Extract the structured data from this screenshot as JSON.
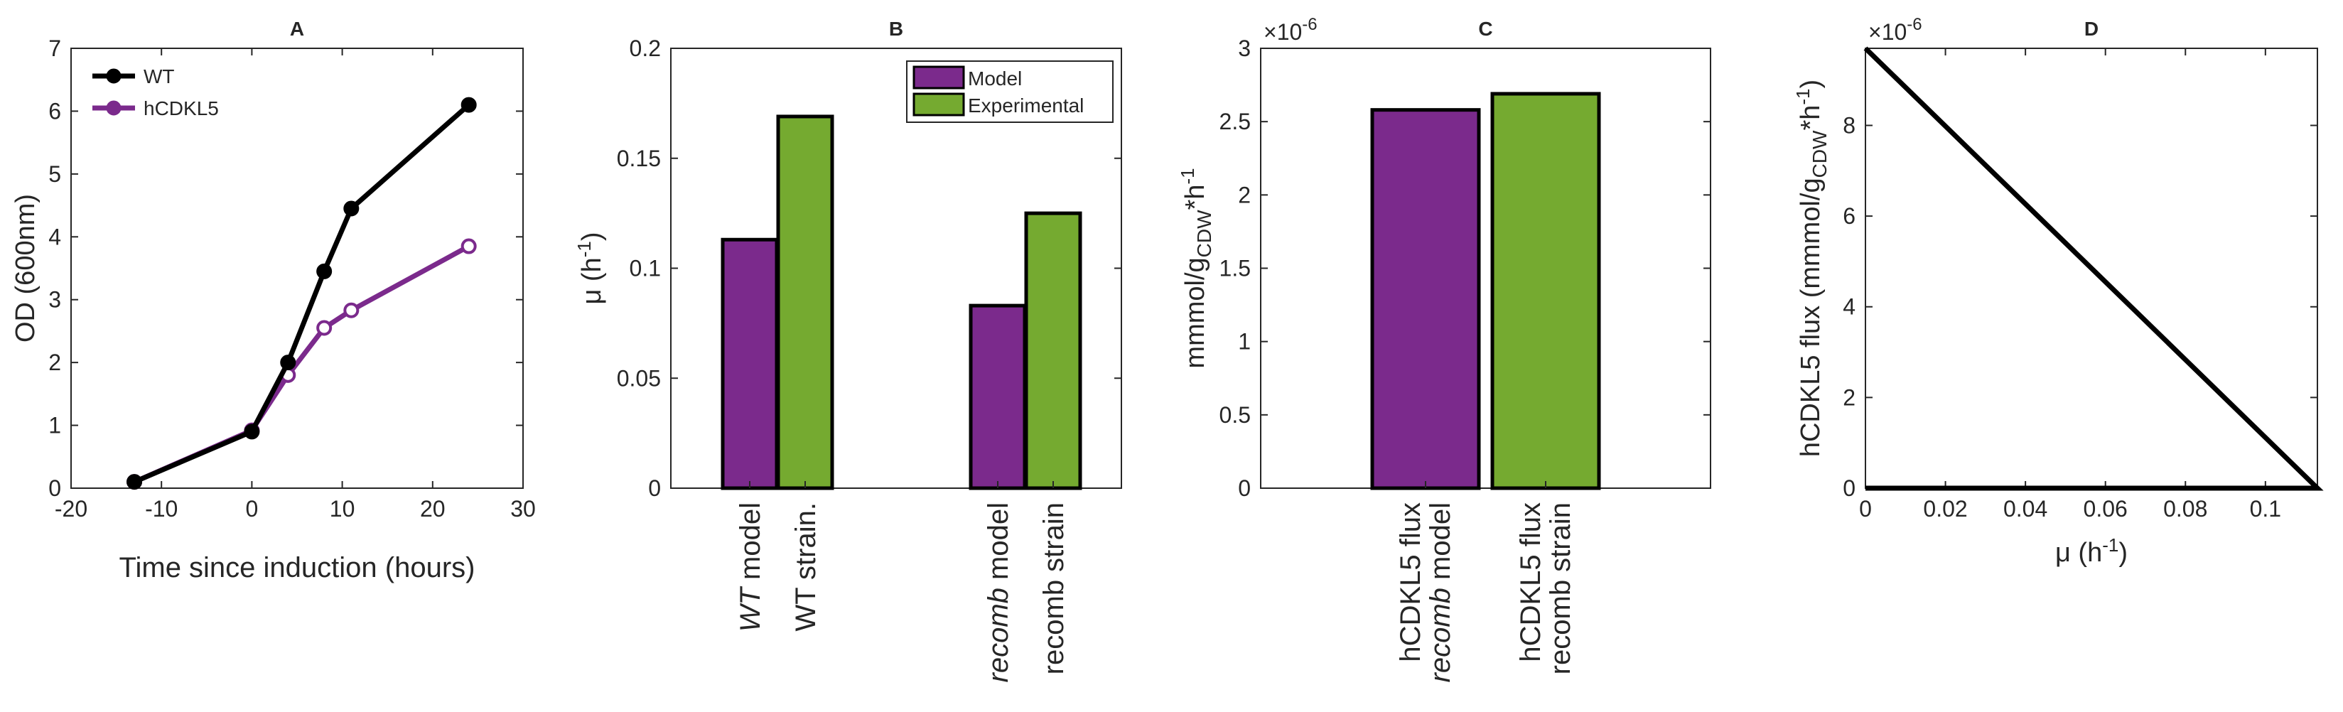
{
  "colors": {
    "wt": "#000000",
    "hcdkl5": "#7b2a8c",
    "model": "#7b2a8c",
    "experimental": "#75aa30",
    "axis": "#262626"
  },
  "chart_data": [
    {
      "type": "line",
      "title": "A",
      "xlabel": "Time since induction (hours)",
      "ylabel": "OD (600nm)",
      "xlim": [
        -20,
        30
      ],
      "ylim": [
        0,
        7
      ],
      "xticks": [
        "-20",
        "-10",
        "0",
        "10",
        "20",
        "30"
      ],
      "yticks": [
        "0",
        "1",
        "2",
        "3",
        "4",
        "5",
        "6",
        "7"
      ],
      "legend_position": "top-left",
      "series": [
        {
          "name": "WT",
          "color": "#000000",
          "x": [
            -13,
            0,
            4,
            8,
            11,
            24
          ],
          "y": [
            0.1,
            0.9,
            2.0,
            3.45,
            4.45,
            6.1
          ]
        },
        {
          "name": "hCDKL5",
          "color": "#7b2a8c",
          "x": [
            -13,
            0,
            4,
            8,
            11,
            24
          ],
          "y": [
            0.1,
            0.92,
            1.8,
            2.55,
            2.83,
            3.85
          ]
        }
      ]
    },
    {
      "type": "bar",
      "title": "B",
      "ylabel_main": "μ (h",
      "ylabel_sup": "-1",
      "ylabel_end": ")",
      "ylim": [
        0,
        0.2
      ],
      "yticks": [
        "0",
        "0.05",
        "0.1",
        "0.15",
        "0.2"
      ],
      "legend_position": "top-right",
      "series": [
        {
          "name": "Model",
          "color": "#7b2a8c"
        },
        {
          "name": "Experimental",
          "color": "#75aa30"
        }
      ],
      "bars": [
        {
          "series": 0,
          "value": 0.113,
          "label_italic": "WT",
          "label_rest": " model"
        },
        {
          "series": 1,
          "value": 0.169,
          "label_italic": "",
          "label_rest": "WT strain."
        },
        {
          "series": 0,
          "value": 0.083,
          "label_italic": "recomb",
          "label_rest": " model"
        },
        {
          "series": 1,
          "value": 0.125,
          "label_italic": "",
          "label_rest": "recomb strain"
        }
      ]
    },
    {
      "type": "bar",
      "title": "C",
      "ylabel_parts": [
        "mmmol/g",
        "CDW",
        "*h",
        "-1"
      ],
      "y_multiplier": "×10",
      "y_multiplier_exp": "-6",
      "ylim": [
        0,
        3
      ],
      "yticks": [
        "0",
        "0.5",
        "1",
        "1.5",
        "2",
        "2.5",
        "3"
      ],
      "bars": [
        {
          "color": "#7b2a8c",
          "value": 2.58,
          "line1": "hCDKL5 flux",
          "line2_italic": "recomb",
          "line2_rest": " model"
        },
        {
          "color": "#75aa30",
          "value": 2.69,
          "line1": "hCDKL5 flux",
          "line2_italic": "",
          "line2_rest": "recomb strain"
        }
      ]
    },
    {
      "type": "line",
      "title": "D",
      "xlabel_main": "μ (h",
      "xlabel_sup": "-1",
      "xlabel_end": ")",
      "ylabel_parts": [
        "hCDKL5 flux (mmmol/g",
        "CDW",
        "*h",
        "-1",
        ")"
      ],
      "y_multiplier": "×10",
      "y_multiplier_exp": "-6",
      "xlim": [
        0,
        0.113
      ],
      "ylim": [
        0,
        9.7
      ],
      "xticks": [
        "0",
        "0.02",
        "0.04",
        "0.06",
        "0.08",
        "0.1"
      ],
      "yticks": [
        "0",
        "2",
        "4",
        "6",
        "8"
      ],
      "series": [
        {
          "color": "#000000",
          "x": [
            0,
            0.113,
            0
          ],
          "y": [
            9.7,
            0,
            0
          ]
        }
      ]
    }
  ]
}
